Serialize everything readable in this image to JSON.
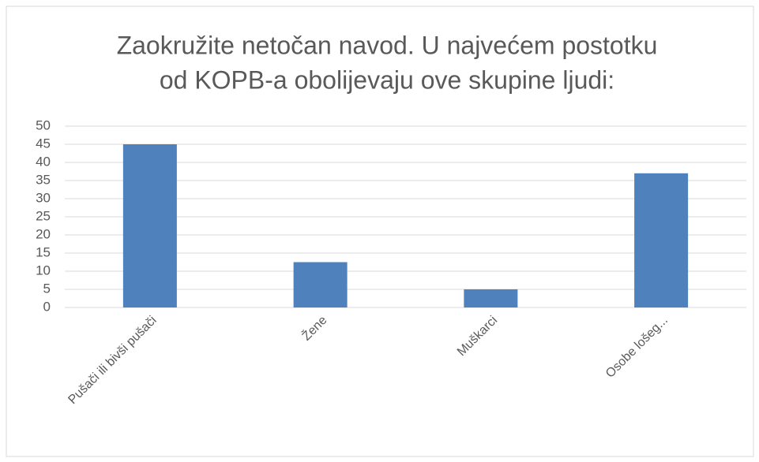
{
  "chart_data": {
    "type": "bar",
    "title": [
      "Zaokružite netočan navod. U najvećem postotku",
      "od KOPB-a obolijevaju ove skupine ljudi:"
    ],
    "categories": [
      "Pušači ili bivši pušači",
      "Žene",
      "Muškarci",
      "Osobe lošeg..."
    ],
    "values": [
      45,
      12.5,
      5,
      37
    ],
    "color": "#4f81bd",
    "ylim": [
      0,
      50
    ],
    "yticks": [
      0,
      5,
      10,
      15,
      20,
      25,
      30,
      35,
      40,
      45,
      50
    ],
    "grid": true
  }
}
